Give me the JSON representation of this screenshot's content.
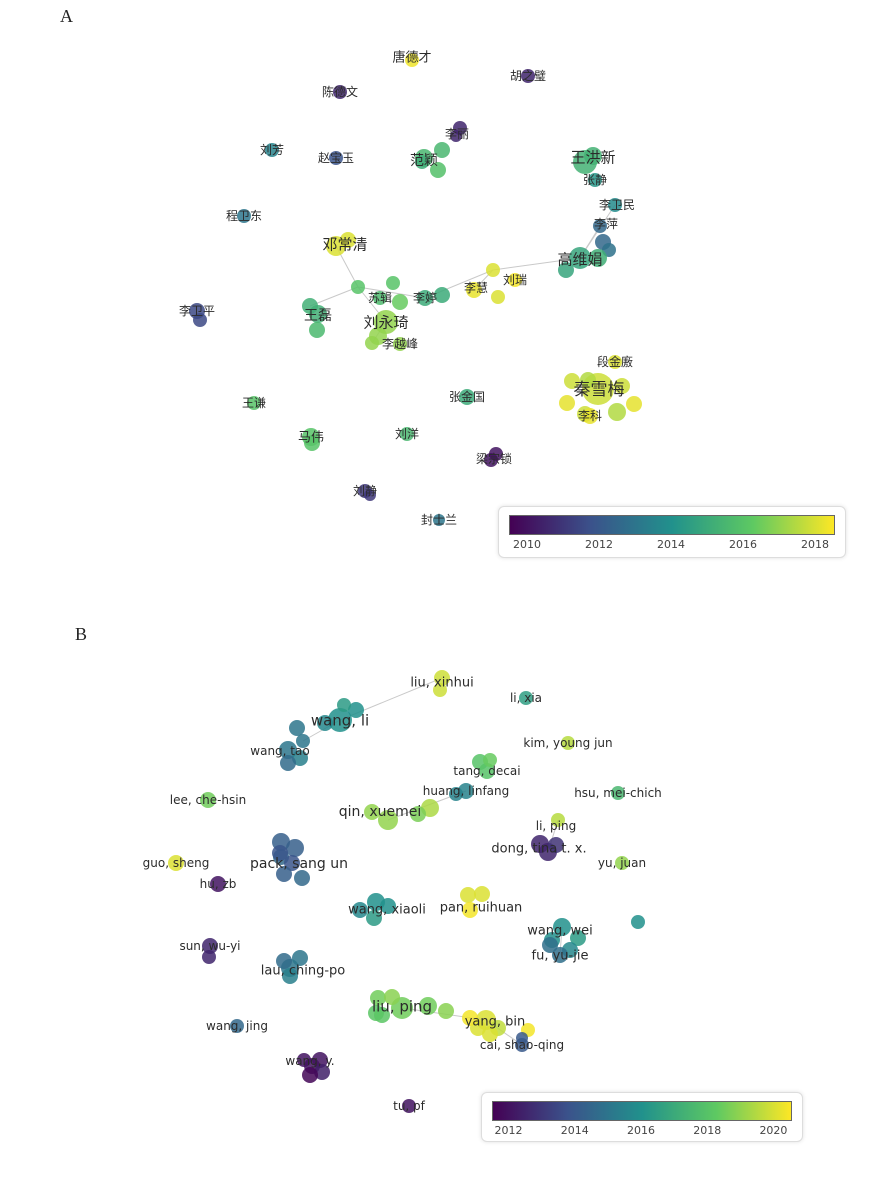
{
  "colors": {
    "label": "#2b2b2b",
    "edge": "#c9c9c9",
    "legend_border": "#dddddd"
  },
  "chart_data": [
    {
      "panel": "A",
      "type": "network",
      "legend": {
        "placement": "bottom-right",
        "ticks": [
          "2010",
          "2012",
          "2014",
          "2016",
          "2018"
        ],
        "range": [
          2009.5,
          2018.5
        ]
      },
      "nodes": [
        {
          "label": "唐德才",
          "year": 2018.3,
          "size": 1
        },
        {
          "label": "胡之璧",
          "year": 2010.5,
          "size": 1
        },
        {
          "label": "陈德文",
          "year": 2010.5,
          "size": 1
        },
        {
          "label": "李丽",
          "year": 2010.5,
          "size": 1
        },
        {
          "label": "刘芳",
          "year": 2013.5,
          "size": 1
        },
        {
          "label": "赵宝玉",
          "year": 2011.8,
          "size": 1
        },
        {
          "label": "范颖",
          "year": 2015.5,
          "size": 2
        },
        {
          "label": "王洪新",
          "year": 2015.3,
          "size": 2
        },
        {
          "label": "张静",
          "year": 2014.2,
          "size": 1
        },
        {
          "label": "程卫东",
          "year": 2013.0,
          "size": 1
        },
        {
          "label": "李卫民",
          "year": 2013.8,
          "size": 1
        },
        {
          "label": "李萍",
          "year": 2012.5,
          "size": 1
        },
        {
          "label": "邓常清",
          "year": 2018.0,
          "size": 2
        },
        {
          "label": "高维娟",
          "year": 2014.8,
          "size": 2
        },
        {
          "label": "刘瑞",
          "year": 2018.0,
          "size": 1
        },
        {
          "label": "李慧",
          "year": 2018.2,
          "size": 1
        },
        {
          "label": "苏辑",
          "year": 2016.0,
          "size": 1
        },
        {
          "label": "李婷",
          "year": 2015.0,
          "size": 1
        },
        {
          "label": "李卫平",
          "year": 2011.5,
          "size": 1
        },
        {
          "label": "王磊",
          "year": 2015.2,
          "size": 2
        },
        {
          "label": "刘永琦",
          "year": 2017.0,
          "size": 2
        },
        {
          "label": "李越峰",
          "year": 2017.0,
          "size": 1
        },
        {
          "label": "段金廒",
          "year": 2018.0,
          "size": 1
        },
        {
          "label": "秦雪梅",
          "year": 2017.8,
          "size": 3
        },
        {
          "label": "李科",
          "year": 2018.2,
          "size": 1
        },
        {
          "label": "王谦",
          "year": 2016.0,
          "size": 1
        },
        {
          "label": "张金国",
          "year": 2015.0,
          "size": 1
        },
        {
          "label": "马伟",
          "year": 2016.0,
          "size": 2
        },
        {
          "label": "刘洋",
          "year": 2015.5,
          "size": 1
        },
        {
          "label": "梁宗锁",
          "year": 2010.0,
          "size": 1
        },
        {
          "label": "刘静",
          "year": 2011.0,
          "size": 1
        },
        {
          "label": "封士兰",
          "year": 2013.0,
          "size": 1
        }
      ]
    },
    {
      "panel": "B",
      "type": "network",
      "legend": {
        "placement": "bottom-right",
        "ticks": [
          "2012",
          "2014",
          "2016",
          "2018",
          "2020"
        ],
        "range": [
          2011.5,
          2020.5
        ]
      },
      "nodes": [
        {
          "label": "liu, xinhui",
          "year": 2019.8,
          "size": 1
        },
        {
          "label": "li, xia",
          "year": 2016.5,
          "size": 1
        },
        {
          "label": "wang, li",
          "year": 2016.0,
          "size": 3
        },
        {
          "label": "wang, tao",
          "year": 2015.0,
          "size": 2
        },
        {
          "label": "kim, young jun",
          "year": 2019.5,
          "size": 1
        },
        {
          "label": "tang, decai",
          "year": 2018.0,
          "size": 2
        },
        {
          "label": "huang, linfang",
          "year": 2015.5,
          "size": 1
        },
        {
          "label": "lee, che-hsin",
          "year": 2018.5,
          "size": 1
        },
        {
          "label": "hsu, mei-chich",
          "year": 2017.5,
          "size": 1
        },
        {
          "label": "qin, xuemei",
          "year": 2019.0,
          "size": 2
        },
        {
          "label": "li, ping",
          "year": 2019.5,
          "size": 1
        },
        {
          "label": "dong, tina t. x.",
          "year": 2012.5,
          "size": 2
        },
        {
          "label": "guo, sheng",
          "year": 2020.0,
          "size": 1
        },
        {
          "label": "pack, sang un",
          "year": 2014.2,
          "size": 3
        },
        {
          "label": "yu, juan",
          "year": 2019.0,
          "size": 1
        },
        {
          "label": "hu, zb",
          "year": 2012.0,
          "size": 1
        },
        {
          "label": "wang, xiaoli",
          "year": 2016.0,
          "size": 2
        },
        {
          "label": "pan, ruihuan",
          "year": 2020.0,
          "size": 2
        },
        {
          "label": "wang, wei",
          "year": 2016.0,
          "size": 2
        },
        {
          "label": "fu, yu-jie",
          "year": 2014.8,
          "size": 2
        },
        {
          "label": "sun, wu-yi",
          "year": 2012.5,
          "size": 1
        },
        {
          "label": "lau, ching-po",
          "year": 2015.0,
          "size": 2
        },
        {
          "label": "liu, ping",
          "year": 2018.5,
          "size": 3
        },
        {
          "label": "yang, bin",
          "year": 2020.0,
          "size": 2
        },
        {
          "label": "cai, shao-qing",
          "year": 2014.0,
          "size": 1
        },
        {
          "label": "wang, jing",
          "year": 2014.5,
          "size": 1
        },
        {
          "label": "wang, y.",
          "year": 2012.0,
          "size": 2
        },
        {
          "label": "tu, pf",
          "year": 2012.0,
          "size": 1
        }
      ]
    }
  ],
  "panels": {
    "a": "A",
    "b": "B"
  }
}
